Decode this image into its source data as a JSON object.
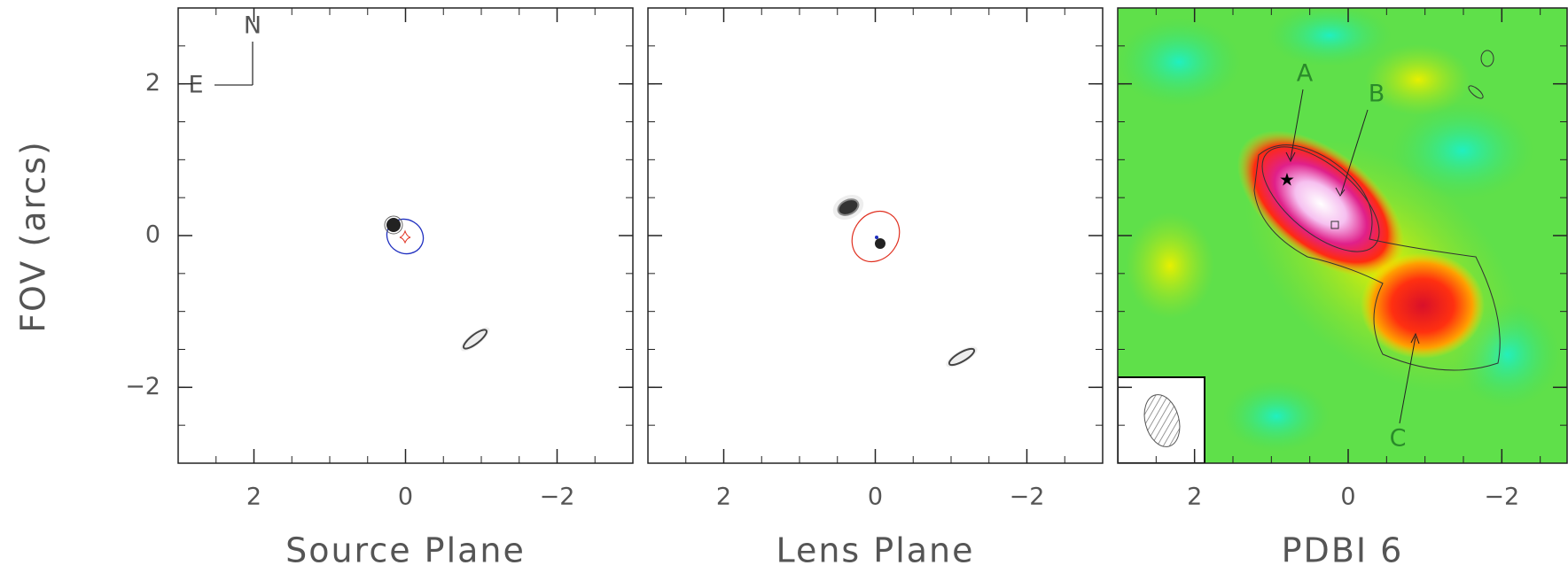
{
  "chart_data": [
    {
      "type": "image",
      "xlabel": "Source Plane",
      "ylabel": "FOV (arcs)",
      "xlim": [
        3,
        -3
      ],
      "ylim": [
        -3,
        3
      ],
      "xticks": [
        2,
        0,
        {
          "value": -2,
          "label": "−2"
        }
      ],
      "yticks": [
        {
          "value": -2,
          "label": "−2"
        },
        0,
        2
      ],
      "annotations": [
        "N",
        "E"
      ]
    },
    {
      "type": "image",
      "xlabel": "Lens Plane",
      "xlim": [
        3,
        -3
      ],
      "ylim": [
        -3,
        3
      ],
      "xticks": [
        2,
        0,
        {
          "value": -2,
          "label": "−2"
        }
      ],
      "yticks": [
        -2,
        0,
        2
      ]
    },
    {
      "type": "image",
      "xlabel": "PDBI 6",
      "xlim": [
        3,
        -2.85
      ],
      "ylim": [
        -3,
        3
      ],
      "xticks": [
        2,
        0,
        {
          "value": -2,
          "label": "−2"
        }
      ],
      "yticks": [
        -2,
        0,
        2
      ],
      "annotations": [
        "A",
        "B",
        "C"
      ]
    }
  ]
}
